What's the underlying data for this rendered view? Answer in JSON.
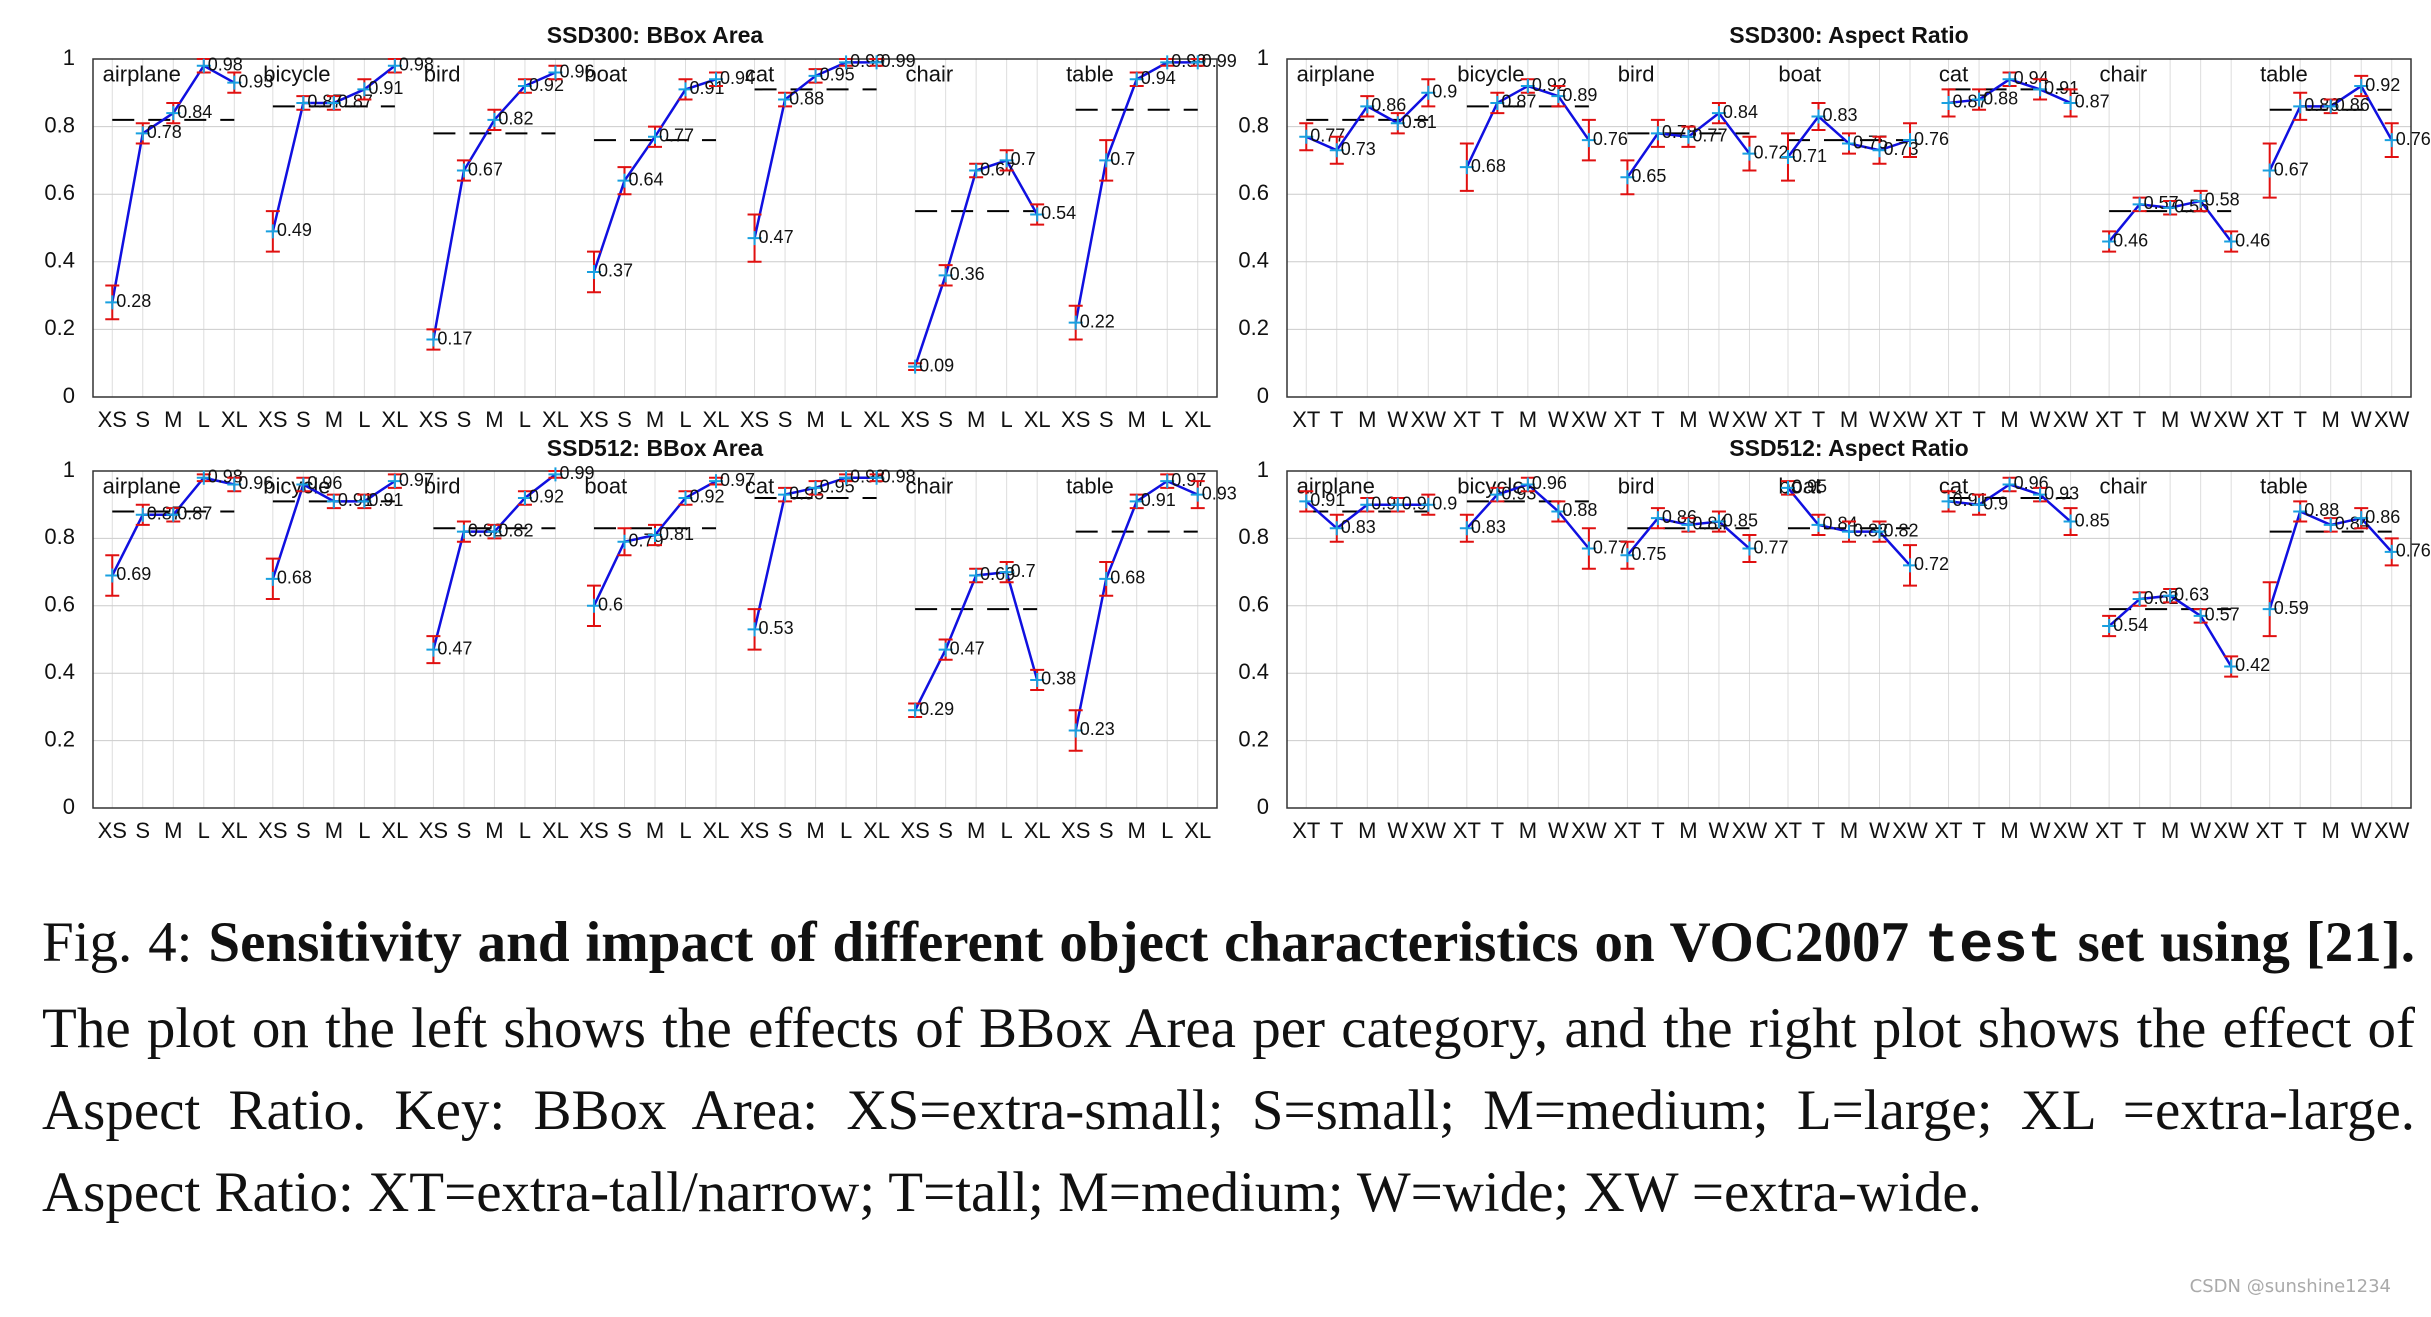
{
  "chart_data": [
    {
      "type": "line",
      "title": "SSD300: BBox Area",
      "x": [
        "XS",
        "S",
        "M",
        "L",
        "XL"
      ],
      "ylim": [
        0,
        1
      ],
      "yticks": [
        0,
        0.2,
        0.4,
        0.6,
        0.8,
        1
      ],
      "grid": true,
      "groups": [
        {
          "name": "airplane",
          "values": [
            0.28,
            0.78,
            0.84,
            0.98,
            0.93
          ],
          "errors": [
            0.05,
            0.03,
            0.03,
            0.02,
            0.03
          ],
          "overall": 0.82
        },
        {
          "name": "bicycle",
          "values": [
            0.49,
            0.87,
            0.87,
            0.91,
            0.98
          ],
          "errors": [
            0.06,
            0.02,
            0.02,
            0.03,
            0.02
          ],
          "overall": 0.86
        },
        {
          "name": "bird",
          "values": [
            0.17,
            0.67,
            0.82,
            0.92,
            0.96
          ],
          "errors": [
            0.03,
            0.03,
            0.03,
            0.02,
            0.02
          ],
          "overall": 0.78
        },
        {
          "name": "boat",
          "values": [
            0.37,
            0.64,
            0.77,
            0.91,
            0.94
          ],
          "errors": [
            0.06,
            0.04,
            0.03,
            0.03,
            0.02
          ],
          "overall": 0.76
        },
        {
          "name": "cat",
          "values": [
            0.47,
            0.88,
            0.95,
            0.99,
            0.99
          ],
          "errors": [
            0.07,
            0.02,
            0.02,
            0.01,
            0.01
          ],
          "overall": 0.91
        },
        {
          "name": "chair",
          "values": [
            0.09,
            0.36,
            0.67,
            0.7,
            0.54
          ],
          "errors": [
            0.01,
            0.03,
            0.02,
            0.03,
            0.03
          ],
          "overall": 0.55
        },
        {
          "name": "table",
          "values": [
            0.22,
            0.7,
            0.94,
            0.99,
            0.99
          ],
          "errors": [
            0.05,
            0.06,
            0.02,
            0.01,
            0.01
          ],
          "overall": 0.85
        }
      ]
    },
    {
      "type": "line",
      "title": "SSD300: Aspect Ratio",
      "x": [
        "XT",
        "T",
        "M",
        "W",
        "XW"
      ],
      "ylim": [
        0,
        1
      ],
      "yticks": [
        0,
        0.2,
        0.4,
        0.6,
        0.8,
        1
      ],
      "grid": true,
      "groups": [
        {
          "name": "airplane",
          "values": [
            0.77,
            0.73,
            0.86,
            0.81,
            0.9
          ],
          "errors": [
            0.04,
            0.04,
            0.03,
            0.03,
            0.04
          ],
          "overall": 0.82
        },
        {
          "name": "bicycle",
          "values": [
            0.68,
            0.87,
            0.92,
            0.89,
            0.76
          ],
          "errors": [
            0.07,
            0.03,
            0.02,
            0.03,
            0.06
          ],
          "overall": 0.86
        },
        {
          "name": "bird",
          "values": [
            0.65,
            0.78,
            0.77,
            0.84,
            0.72
          ],
          "errors": [
            0.05,
            0.04,
            0.03,
            0.03,
            0.05
          ],
          "overall": 0.78
        },
        {
          "name": "boat",
          "values": [
            0.71,
            0.83,
            0.75,
            0.73,
            0.76
          ],
          "errors": [
            0.07,
            0.04,
            0.03,
            0.04,
            0.05
          ],
          "overall": 0.76
        },
        {
          "name": "cat",
          "values": [
            0.87,
            0.88,
            0.94,
            0.91,
            0.87
          ],
          "errors": [
            0.04,
            0.03,
            0.02,
            0.03,
            0.04
          ],
          "overall": 0.91
        },
        {
          "name": "chair",
          "values": [
            0.46,
            0.57,
            0.56,
            0.58,
            0.46
          ],
          "errors": [
            0.03,
            0.02,
            0.02,
            0.03,
            0.03
          ],
          "overall": 0.55
        },
        {
          "name": "table",
          "values": [
            0.67,
            0.86,
            0.86,
            0.92,
            0.76
          ],
          "errors": [
            0.08,
            0.04,
            0.02,
            0.03,
            0.05
          ],
          "overall": 0.85
        }
      ]
    },
    {
      "type": "line",
      "title": "SSD512: BBox Area",
      "x": [
        "XS",
        "S",
        "M",
        "L",
        "XL"
      ],
      "ylim": [
        0,
        1
      ],
      "yticks": [
        0,
        0.2,
        0.4,
        0.6,
        0.8,
        1
      ],
      "grid": true,
      "groups": [
        {
          "name": "airplane",
          "values": [
            0.69,
            0.87,
            0.87,
            0.98,
            0.96
          ],
          "errors": [
            0.06,
            0.03,
            0.02,
            0.01,
            0.02
          ],
          "overall": 0.88
        },
        {
          "name": "bicycle",
          "values": [
            0.68,
            0.96,
            0.91,
            0.91,
            0.97
          ],
          "errors": [
            0.06,
            0.02,
            0.02,
            0.02,
            0.02
          ],
          "overall": 0.91
        },
        {
          "name": "bird",
          "values": [
            0.47,
            0.82,
            0.82,
            0.92,
            0.99
          ],
          "errors": [
            0.04,
            0.03,
            0.02,
            0.02,
            0.01
          ],
          "overall": 0.83
        },
        {
          "name": "boat",
          "values": [
            0.6,
            0.79,
            0.81,
            0.92,
            0.97
          ],
          "errors": [
            0.06,
            0.04,
            0.03,
            0.02,
            0.01
          ],
          "overall": 0.83
        },
        {
          "name": "cat",
          "values": [
            0.53,
            0.93,
            0.95,
            0.98,
            0.98
          ],
          "errors": [
            0.06,
            0.02,
            0.02,
            0.01,
            0.01
          ],
          "overall": 0.92
        },
        {
          "name": "chair",
          "values": [
            0.29,
            0.47,
            0.69,
            0.7,
            0.38
          ],
          "errors": [
            0.02,
            0.03,
            0.02,
            0.03,
            0.03
          ],
          "overall": 0.59
        },
        {
          "name": "table",
          "values": [
            0.23,
            0.68,
            0.91,
            0.97,
            0.93
          ],
          "errors": [
            0.06,
            0.05,
            0.02,
            0.02,
            0.04
          ],
          "overall": 0.82
        }
      ]
    },
    {
      "type": "line",
      "title": "SSD512: Aspect Ratio",
      "x": [
        "XT",
        "T",
        "M",
        "W",
        "XW"
      ],
      "ylim": [
        0,
        1
      ],
      "yticks": [
        0,
        0.2,
        0.4,
        0.6,
        0.8,
        1
      ],
      "grid": true,
      "groups": [
        {
          "name": "airplane",
          "values": [
            0.91,
            0.83,
            0.9,
            0.9,
            0.9
          ],
          "errors": [
            0.03,
            0.04,
            0.02,
            0.02,
            0.03
          ],
          "overall": 0.88
        },
        {
          "name": "bicycle",
          "values": [
            0.83,
            0.93,
            0.96,
            0.88,
            0.77
          ],
          "errors": [
            0.04,
            0.02,
            0.02,
            0.03,
            0.06
          ],
          "overall": 0.91
        },
        {
          "name": "bird",
          "values": [
            0.75,
            0.86,
            0.84,
            0.85,
            0.77
          ],
          "errors": [
            0.04,
            0.03,
            0.02,
            0.03,
            0.04
          ],
          "overall": 0.83
        },
        {
          "name": "boat",
          "values": [
            0.95,
            0.84,
            0.82,
            0.82,
            0.72
          ],
          "errors": [
            0.02,
            0.03,
            0.03,
            0.03,
            0.06
          ],
          "overall": 0.83
        },
        {
          "name": "cat",
          "values": [
            0.91,
            0.9,
            0.96,
            0.93,
            0.85
          ],
          "errors": [
            0.03,
            0.03,
            0.02,
            0.02,
            0.04
          ],
          "overall": 0.92
        },
        {
          "name": "chair",
          "values": [
            0.54,
            0.62,
            0.63,
            0.57,
            0.42
          ],
          "errors": [
            0.03,
            0.02,
            0.02,
            0.02,
            0.03
          ],
          "overall": 0.59
        },
        {
          "name": "table",
          "values": [
            0.59,
            0.88,
            0.84,
            0.86,
            0.76
          ],
          "errors": [
            0.08,
            0.03,
            0.02,
            0.03,
            0.04
          ],
          "overall": 0.82
        }
      ]
    }
  ],
  "caption": {
    "label": "Fig. 4:",
    "bold": "Sensitivity and impact of different object characteristics on VOC2007",
    "code": "test",
    "bold2": "set using [21].",
    "text": "The plot on the left shows the effects of BBox Area per category, and the right plot shows the effect of Aspect Ratio. Key: BBox Area: XS=extra-small; S=small; M=medium; L=large; XL =extra-large. Aspect Ratio: XT=extra-tall/narrow; T=tall; M=medium; W=wide; XW =extra-wide."
  },
  "watermark": "CSDN @sunshine1234"
}
